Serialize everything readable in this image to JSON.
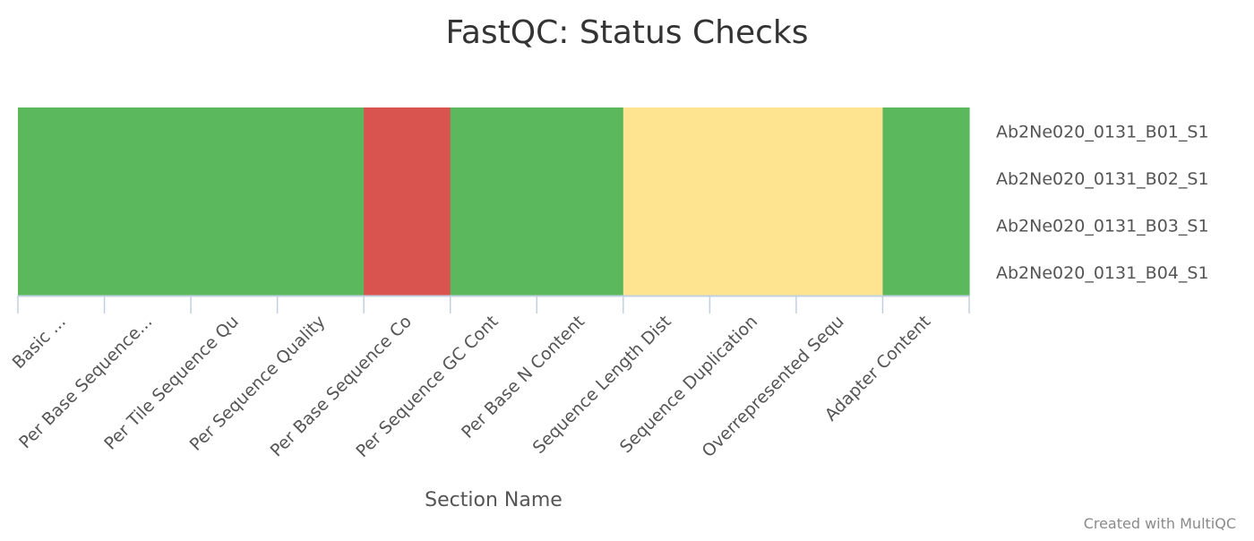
{
  "chart_data": {
    "type": "heatmap",
    "title": "FastQC: Status Checks",
    "xlabel": "Section Name",
    "ylabel": "",
    "categories": [
      "Basic ...",
      "Per Base Sequence...",
      "Per Tile Sequence Qu",
      "Per Sequence Quality",
      "Per Base Sequence Co",
      "Per Sequence GC Cont",
      "Per Base N Content",
      "Sequence Length Dist",
      "Sequence Duplication",
      "Overrepresented Sequ",
      "Adapter Content"
    ],
    "samples": [
      "Ab2Ne020_0131_B01_S1",
      "Ab2Ne020_0131_B02_S1",
      "Ab2Ne020_0131_B03_S1",
      "Ab2Ne020_0131_B04_S1"
    ],
    "status_values": [
      [
        "pass",
        "pass",
        "pass",
        "pass",
        "fail",
        "pass",
        "pass",
        "warn",
        "warn",
        "warn",
        "pass"
      ],
      [
        "pass",
        "pass",
        "pass",
        "pass",
        "fail",
        "pass",
        "pass",
        "warn",
        "warn",
        "warn",
        "pass"
      ],
      [
        "pass",
        "pass",
        "pass",
        "pass",
        "fail",
        "pass",
        "pass",
        "warn",
        "warn",
        "warn",
        "pass"
      ],
      [
        "pass",
        "pass",
        "pass",
        "pass",
        "fail",
        "pass",
        "pass",
        "warn",
        "warn",
        "warn",
        "pass"
      ]
    ],
    "status_colors": {
      "pass": "#5cb85c",
      "warn": "#fee391",
      "fail": "#d9534f"
    },
    "grid": false,
    "legend": "none"
  },
  "footer": {
    "credit": "Created with MultiQC"
  },
  "colors": {
    "axis_line": "#c0d0e0",
    "title_text": "#333333",
    "label_text": "#555555",
    "credit_text": "#8a8a8a"
  }
}
